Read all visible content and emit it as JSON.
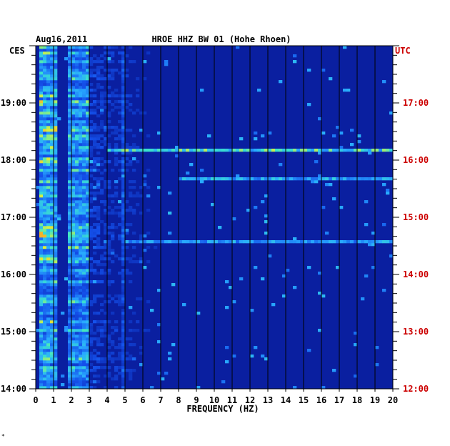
{
  "chart_data": {
    "type": "heatmap",
    "date": "Aug16,2011",
    "title": "HROE HHZ BW 01 (Hohe Rhoen)",
    "left_timezone": "CES",
    "right_timezone": "UTC",
    "xlabel": "FREQUENCY (HZ)",
    "x_ticks": [
      "0",
      "1",
      "2",
      "3",
      "4",
      "5",
      "6",
      "7",
      "8",
      "9",
      "10",
      "11",
      "12",
      "13",
      "14",
      "15",
      "16",
      "17",
      "18",
      "19",
      "20"
    ],
    "xlim": [
      0,
      20
    ],
    "left_time_ticks": [
      "14:00",
      "15:00",
      "16:00",
      "17:00",
      "18:00",
      "19:00"
    ],
    "right_time_ticks": [
      "12:00",
      "13:00",
      "14:00",
      "15:00",
      "16:00",
      "17:00"
    ],
    "time_range_ces": [
      "14:00",
      "20:00"
    ],
    "colors": {
      "background": "#0a1fa0",
      "left_text": "#000000",
      "right_text": "#cc0000"
    },
    "energy_bands_hz": [
      {
        "name": "microseism band",
        "from": 0.2,
        "to": 1.2,
        "level": 0.75
      },
      {
        "name": "band 2",
        "from": 1.8,
        "to": 3.0,
        "level": 0.65
      },
      {
        "name": "line 5 Hz",
        "from": 4.9,
        "to": 5.1,
        "level": 0.35
      }
    ],
    "bright_lines": [
      {
        "time": "18:10",
        "from_hz": 4,
        "to_hz": 20,
        "level": 0.7
      },
      {
        "time": "17:40",
        "from_hz": 8,
        "to_hz": 20,
        "level": 0.55
      },
      {
        "time": "16:35",
        "from_hz": 5,
        "to_hz": 20,
        "level": 0.5
      }
    ]
  },
  "corner_mark": "*"
}
